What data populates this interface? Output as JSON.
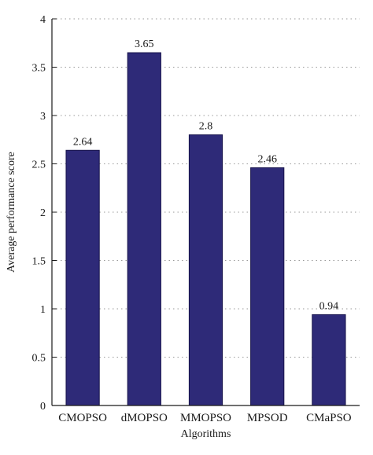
{
  "chart_data": {
    "type": "bar",
    "categories": [
      "CMOPSO",
      "dMOPSO",
      "MMOPSO",
      "MPSOD",
      "CMaPSO"
    ],
    "values": [
      2.64,
      3.65,
      2.8,
      2.46,
      0.94
    ],
    "value_labels": [
      "2.64",
      "3.65",
      "2.8",
      "2.46",
      "0.94"
    ],
    "xlabel": "Algorithms",
    "ylabel": "Average performance score",
    "ylim": [
      0,
      4
    ],
    "yticks": [
      0,
      0.5,
      1,
      1.5,
      2,
      2.5,
      3,
      3.5,
      4
    ],
    "ytick_labels": [
      "0",
      "0.5",
      "1",
      "1.5",
      "2",
      "2.5",
      "3",
      "3.5",
      "4"
    ],
    "grid": "dotted horizontal",
    "bar_color": "#2e2a78"
  }
}
